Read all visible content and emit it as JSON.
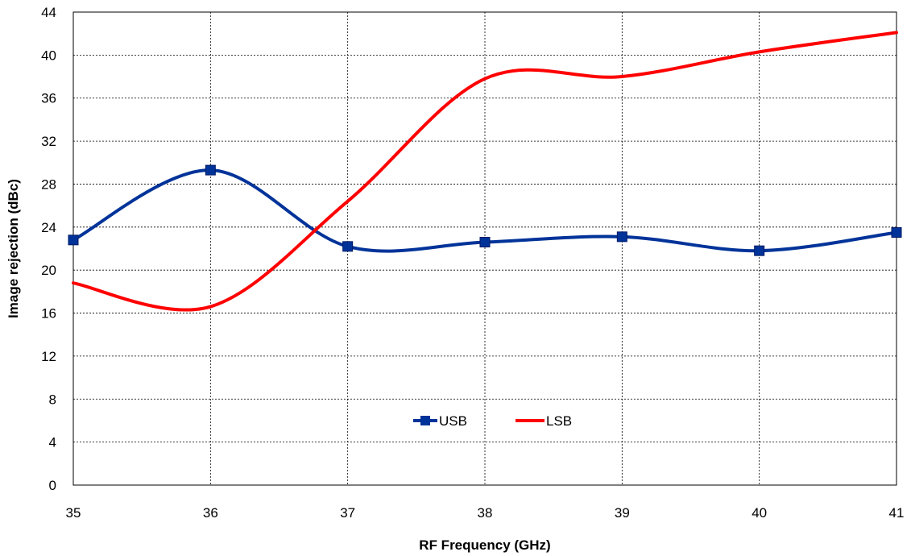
{
  "chart_data": {
    "type": "line",
    "title": "",
    "xlabel": "RF Frequency (GHz)",
    "ylabel": "Image rejection  (dBc)",
    "xlim": [
      35,
      41
    ],
    "ylim": [
      0,
      44
    ],
    "xticks": [
      35,
      36,
      37,
      38,
      39,
      40,
      41
    ],
    "yticks": [
      0,
      4,
      8,
      12,
      16,
      20,
      24,
      28,
      32,
      36,
      40,
      44
    ],
    "grid": true,
    "legend_position": "bottom-center",
    "x": [
      35,
      36,
      37,
      38,
      39,
      40,
      41
    ],
    "series": [
      {
        "name": "USB",
        "color": "#003399",
        "marker": "square",
        "values": [
          22.8,
          29.3,
          22.2,
          22.6,
          23.1,
          21.8,
          23.5
        ]
      },
      {
        "name": "LSB",
        "color": "#ff0000",
        "marker": "none",
        "values": [
          18.8,
          16.6,
          26.4,
          37.8,
          38.0,
          40.3,
          42.1
        ]
      }
    ]
  }
}
